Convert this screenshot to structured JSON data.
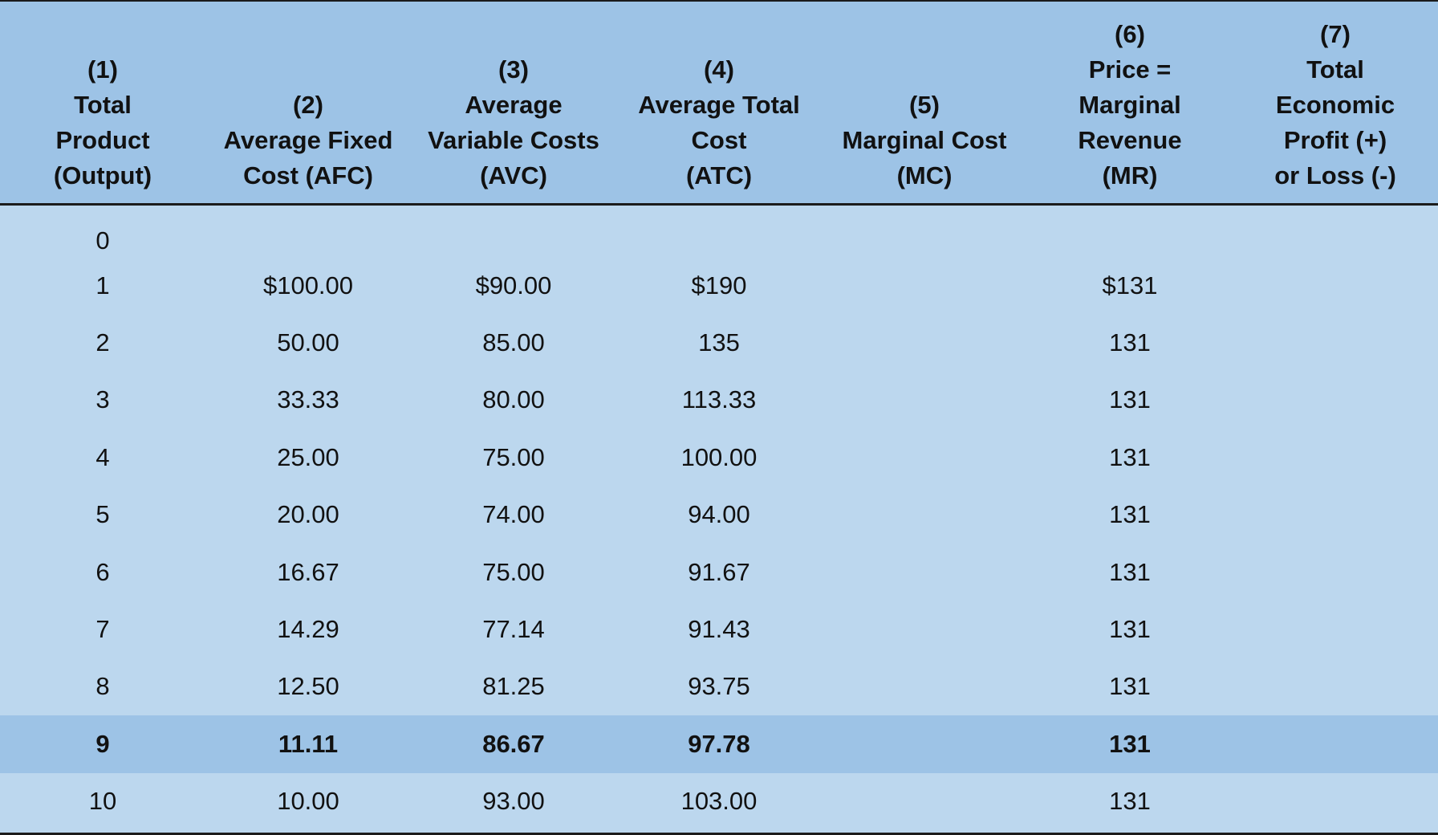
{
  "table": {
    "headers": [
      [
        "(1)",
        "Total",
        "Product",
        "(Output)"
      ],
      [
        "(2)",
        "Average Fixed",
        "Cost (AFC)"
      ],
      [
        "(3)",
        "Average",
        "Variable Costs",
        "(AVC)"
      ],
      [
        "(4)",
        "Average Total",
        "Cost",
        "(ATC)"
      ],
      [
        "(5)",
        "Marginal Cost",
        "(MC)"
      ],
      [
        "(6)",
        "Price =",
        "Marginal",
        "Revenue",
        "(MR)"
      ],
      [
        "(7)",
        "Total",
        "Economic",
        "Profit (+)",
        "or Loss (-)"
      ]
    ],
    "rows": [
      [
        "0",
        "",
        "",
        "",
        "",
        "",
        ""
      ],
      [
        "1",
        "$100.00",
        "$90.00",
        "$190",
        "",
        "$131",
        ""
      ],
      [
        "2",
        "50.00",
        "85.00",
        "135",
        "",
        "131",
        ""
      ],
      [
        "3",
        "33.33",
        "80.00",
        "113.33",
        "",
        "131",
        ""
      ],
      [
        "4",
        "25.00",
        "75.00",
        "100.00",
        "",
        "131",
        ""
      ],
      [
        "5",
        "20.00",
        "74.00",
        "94.00",
        "",
        "131",
        ""
      ],
      [
        "6",
        "16.67",
        "75.00",
        "91.67",
        "",
        "131",
        ""
      ],
      [
        "7",
        "14.29",
        "77.14",
        "91.43",
        "",
        "131",
        ""
      ],
      [
        "8",
        "12.50",
        "81.25",
        "93.75",
        "",
        "131",
        ""
      ],
      [
        "9",
        "11.11",
        "86.67",
        "97.78",
        "",
        "131",
        ""
      ],
      [
        "10",
        "10.00",
        "93.00",
        "103.00",
        "",
        "131",
        ""
      ]
    ],
    "highlighted_row_index": 9,
    "colors": {
      "header_bg": "#9dc3e6",
      "body_bg": "#bcd7ee",
      "highlight_bg": "#9dc3e6",
      "rule": "#1b1b1b"
    }
  }
}
